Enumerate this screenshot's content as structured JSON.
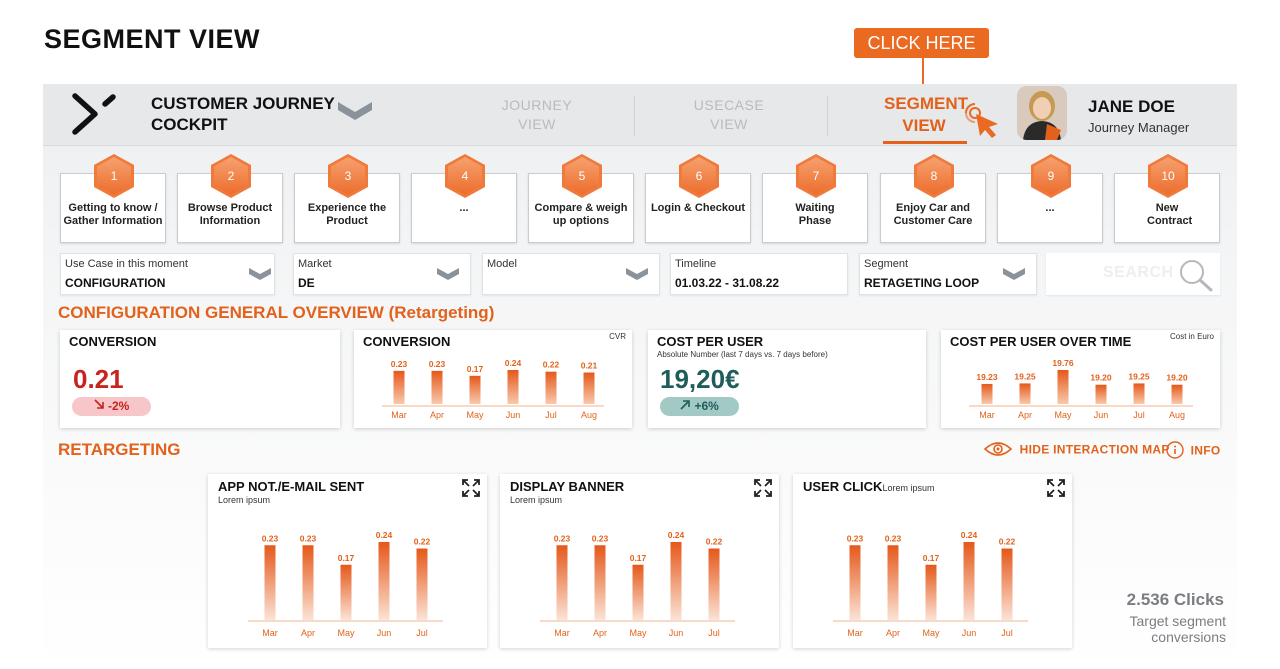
{
  "slide_title": "SEGMENT VIEW",
  "callout": "CLICK HERE",
  "colors": {
    "accent": "#e2621c",
    "negative": "#c8231f",
    "positive": "#1e5e5a",
    "muted": "#b7bbc0"
  },
  "header": {
    "app_title_line1": "CUSTOMER JOURNEY",
    "app_title_line2": "COCKPIT",
    "nav": [
      {
        "line1": "JOURNEY",
        "line2": "VIEW"
      },
      {
        "line1": "USECASE",
        "line2": "VIEW"
      },
      {
        "line1": "SEGMENT",
        "line2": "VIEW"
      }
    ],
    "user_name": "JANE DOE",
    "user_role": "Journey Manager"
  },
  "steps": [
    {
      "num": "1",
      "label": "Getting to know / Gather Information"
    },
    {
      "num": "2",
      "label": "Browse Product Information"
    },
    {
      "num": "3",
      "label": "Experience the Product"
    },
    {
      "num": "4",
      "label": "..."
    },
    {
      "num": "5",
      "label": "Compare & weigh up options"
    },
    {
      "num": "6",
      "label": "Login & Checkout"
    },
    {
      "num": "7",
      "label": "Waiting Phase"
    },
    {
      "num": "8",
      "label": "Enjoy Car and Customer Care"
    },
    {
      "num": "9",
      "label": "..."
    },
    {
      "num": "10",
      "label": "New Contract"
    }
  ],
  "filters": [
    {
      "label": "Use Case in this moment",
      "value": "CONFIGURATION"
    },
    {
      "label": "Market",
      "value": "DE"
    },
    {
      "label": "Model",
      "value": ""
    },
    {
      "label": "Timeline",
      "value": "01.03.22 - 31.08.22"
    },
    {
      "label": "Segment",
      "value": "RETAGETING LOOP"
    }
  ],
  "search": {
    "placeholder": "SEARCH"
  },
  "overview": {
    "title": "CONFIGURATION GENERAL OVERVIEW (Retargeting)",
    "kpis": [
      {
        "title": "CONVERSION",
        "value": "0.21",
        "delta": "-2%"
      },
      {
        "title": "CONVERSION",
        "note": "CVR"
      },
      {
        "title": "COST PER USER",
        "subtitle": "Absolute Number (last 7 days vs. 7 days before)",
        "value": "19,20€",
        "delta": "+6%"
      },
      {
        "title": "COST PER USER OVER TIME",
        "note": "Cost in Euro"
      }
    ]
  },
  "retargeting": {
    "title": "RETARGETING",
    "hide_map": "HIDE INTERACTION MAP",
    "info": "INFO",
    "cards": [
      {
        "title": "APP NOT./E-MAIL  SENT",
        "subtitle": "Lorem  ipsum"
      },
      {
        "title": "DISPLAY BANNER",
        "subtitle": "Lorem  ipsum"
      },
      {
        "title": "USER CLICK",
        "subtitle": "Lorem  ipsum"
      }
    ],
    "clicks_value": "2.536 Clicks",
    "clicks_line1": "Target segment",
    "clicks_line2": "conversions"
  },
  "chart_data": [
    {
      "type": "bar",
      "title": "CONVERSION",
      "categories": [
        "Mar",
        "Apr",
        "May",
        "Jun",
        "Jul",
        "Aug"
      ],
      "values": [
        0.23,
        0.23,
        0.17,
        0.24,
        0.22,
        0.21
      ],
      "labels": [
        "0.23",
        "0.23",
        "0.17",
        "0.24",
        "0.22",
        "0.21"
      ],
      "ylim": [
        0,
        0.24
      ]
    },
    {
      "type": "bar",
      "title": "COST PER USER OVER TIME",
      "categories": [
        "Mar",
        "Apr",
        "May",
        "Jun",
        "Jul",
        "Aug"
      ],
      "values": [
        19.23,
        19.25,
        19.76,
        19.2,
        19.25,
        19.2
      ],
      "labels": [
        "19.23",
        "19.25",
        "19.76",
        "19.20",
        "19.25",
        "19.20"
      ],
      "ylim": [
        19.0,
        19.76
      ]
    },
    {
      "type": "bar",
      "title": "APP NOT./E-MAIL  SENT",
      "categories": [
        "Mar",
        "Apr",
        "May",
        "Jun",
        "Jul"
      ],
      "values": [
        0.23,
        0.23,
        0.17,
        0.24,
        0.22
      ],
      "labels": [
        "0.23",
        "0.23",
        "0.17",
        "0.24",
        "0.22"
      ],
      "ylim": [
        0,
        0.24
      ]
    },
    {
      "type": "bar",
      "title": "DISPLAY BANNER",
      "categories": [
        "Mar",
        "Apr",
        "May",
        "Jun",
        "Jul"
      ],
      "values": [
        0.23,
        0.23,
        0.17,
        0.24,
        0.22
      ],
      "labels": [
        "0.23",
        "0.23",
        "0.17",
        "0.24",
        "0.22"
      ],
      "ylim": [
        0,
        0.24
      ]
    },
    {
      "type": "bar",
      "title": "USER CLICK",
      "categories": [
        "Mar",
        "Apr",
        "May",
        "Jun",
        "Jul"
      ],
      "values": [
        0.23,
        0.23,
        0.17,
        0.24,
        0.22
      ],
      "labels": [
        "0.23",
        "0.23",
        "0.17",
        "0.24",
        "0.22"
      ],
      "ylim": [
        0,
        0.24
      ]
    }
  ]
}
